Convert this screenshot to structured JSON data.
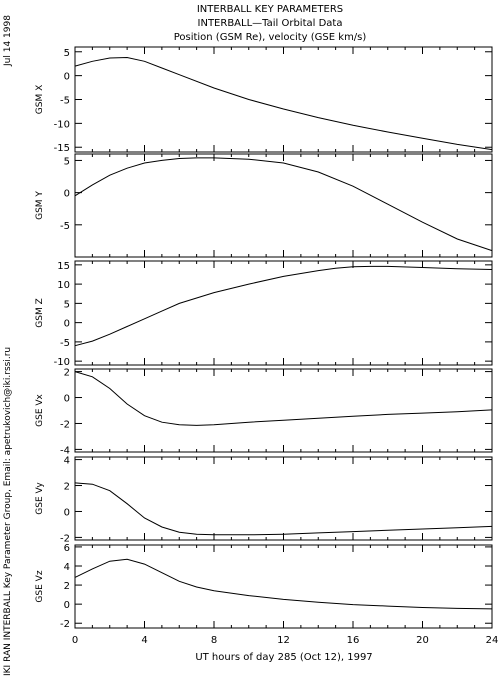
{
  "title_lines": [
    "INTERBALL KEY PARAMETERS",
    "INTERBALL—Tail Orbital Data",
    "Position (GSM Re), velocity (GSE km/s)"
  ],
  "date_label": "Jul 14 1998",
  "credit_label": "IKI RAN INTERBALL Key Parameter Group, Email: apetrukovich@iki.rssi.ru",
  "xlabel": "UT hours of day 285 (Oct 12), 1997",
  "colors": {
    "line": "#000000",
    "frame": "#000000",
    "background": "#ffffff"
  },
  "chart_data": [
    {
      "type": "line",
      "ylabel": "GSM X",
      "xlim": [
        0,
        24
      ],
      "ylim": [
        -16,
        6
      ],
      "yticks": [
        5,
        0,
        -5,
        -10,
        -15
      ],
      "xticks": [
        0,
        4,
        8,
        12,
        16,
        20,
        24
      ],
      "x": [
        0,
        1,
        2,
        3,
        4,
        5,
        6,
        8,
        10,
        12,
        14,
        16,
        18,
        20,
        22,
        24
      ],
      "y": [
        2.0,
        3.0,
        3.7,
        3.8,
        3.0,
        1.6,
        0.2,
        -2.6,
        -5.0,
        -7.0,
        -8.8,
        -10.4,
        -11.8,
        -13.1,
        -14.4,
        -15.5
      ]
    },
    {
      "type": "line",
      "ylabel": "GSM Y",
      "xlim": [
        0,
        24
      ],
      "ylim": [
        -10,
        6
      ],
      "yticks": [
        5,
        0,
        -5
      ],
      "xticks": [
        0,
        4,
        8,
        12,
        16,
        20,
        24
      ],
      "x": [
        0,
        1,
        2,
        3,
        4,
        5,
        6,
        7,
        8,
        10,
        12,
        14,
        16,
        18,
        20,
        22,
        24
      ],
      "y": [
        -0.5,
        1.2,
        2.7,
        3.8,
        4.6,
        5.0,
        5.3,
        5.4,
        5.4,
        5.2,
        4.6,
        3.2,
        1.0,
        -1.8,
        -4.6,
        -7.2,
        -9.0
      ]
    },
    {
      "type": "line",
      "ylabel": "GSM Z",
      "xlim": [
        0,
        24
      ],
      "ylim": [
        -11,
        16
      ],
      "yticks": [
        15,
        10,
        5,
        0,
        -5,
        -10
      ],
      "xticks": [
        0,
        4,
        8,
        12,
        16,
        20,
        24
      ],
      "x": [
        0,
        1,
        2,
        3,
        4,
        5,
        6,
        8,
        10,
        12,
        14,
        15,
        16,
        17,
        18,
        20,
        22,
        24
      ],
      "y": [
        -6.0,
        -4.8,
        -3.0,
        -1.0,
        1.0,
        3.0,
        5.0,
        7.8,
        10.0,
        12.0,
        13.5,
        14.1,
        14.5,
        14.6,
        14.6,
        14.3,
        14.0,
        13.8
      ]
    },
    {
      "type": "line",
      "ylabel": "GSE Vx",
      "xlim": [
        0,
        24
      ],
      "ylim": [
        -4.2,
        2.2
      ],
      "yticks": [
        2,
        0,
        -2,
        -4
      ],
      "xticks": [
        0,
        4,
        8,
        12,
        16,
        20,
        24
      ],
      "x": [
        0,
        1,
        2,
        3,
        4,
        5,
        6,
        7,
        8,
        10,
        12,
        14,
        16,
        18,
        20,
        22,
        24
      ],
      "y": [
        2.0,
        1.6,
        0.7,
        -0.5,
        -1.4,
        -1.9,
        -2.1,
        -2.15,
        -2.1,
        -1.9,
        -1.75,
        -1.6,
        -1.45,
        -1.3,
        -1.2,
        -1.1,
        -0.95
      ]
    },
    {
      "type": "line",
      "ylabel": "GSE Vy",
      "xlim": [
        0,
        24
      ],
      "ylim": [
        -2.2,
        4.2
      ],
      "yticks": [
        4,
        2,
        0,
        -2
      ],
      "xticks": [
        0,
        4,
        8,
        12,
        16,
        20,
        24
      ],
      "x": [
        0,
        1,
        2,
        3,
        4,
        5,
        6,
        7,
        8,
        10,
        12,
        14,
        16,
        18,
        20,
        22,
        24
      ],
      "y": [
        2.2,
        2.1,
        1.6,
        0.6,
        -0.5,
        -1.2,
        -1.6,
        -1.75,
        -1.8,
        -1.8,
        -1.75,
        -1.65,
        -1.55,
        -1.45,
        -1.35,
        -1.25,
        -1.15
      ]
    },
    {
      "type": "line",
      "ylabel": "GSE Vz",
      "xlim": [
        0,
        24
      ],
      "ylim": [
        -2.5,
        6.2
      ],
      "yticks": [
        6,
        4,
        2,
        0,
        -2
      ],
      "xticks": [
        0,
        4,
        8,
        12,
        16,
        20,
        24
      ],
      "x": [
        0,
        1,
        2,
        3,
        4,
        5,
        6,
        7,
        8,
        10,
        12,
        14,
        16,
        18,
        20,
        22,
        24
      ],
      "y": [
        2.8,
        3.7,
        4.5,
        4.7,
        4.2,
        3.3,
        2.4,
        1.8,
        1.4,
        0.9,
        0.5,
        0.2,
        -0.05,
        -0.2,
        -0.35,
        -0.45,
        -0.5
      ]
    }
  ]
}
